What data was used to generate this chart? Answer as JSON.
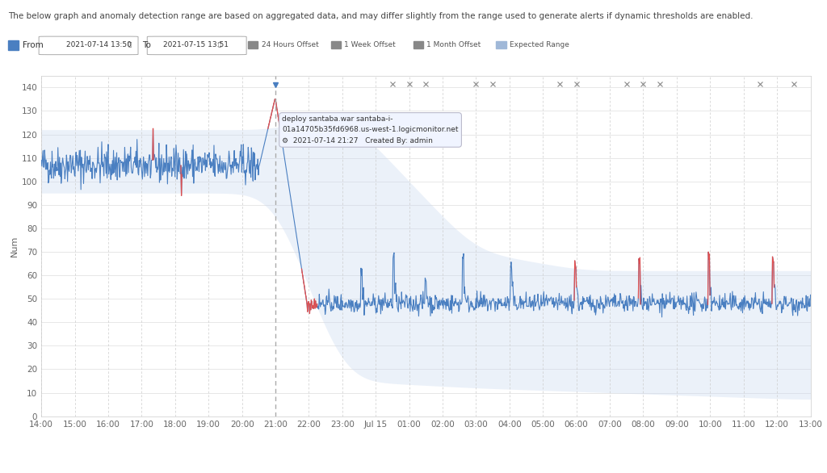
{
  "title_text": "The below graph and anomaly detection range are based on aggregated data, and may differ slightly from the range used to generate alerts if dynamic thresholds are enabled.",
  "from_label": "From",
  "from_date": "2021-07-14 13:50",
  "to_date": "2021-07-15 13:51",
  "legend_items": [
    "24 Hours Offset",
    "1 Week Offset",
    "1 Month Offset",
    "Expected Range"
  ],
  "ylabel": "Num",
  "ylim": [
    0,
    145
  ],
  "yticks": [
    0,
    10,
    20,
    30,
    40,
    50,
    60,
    70,
    80,
    90,
    100,
    110,
    120,
    130,
    140
  ],
  "x_tick_labels": [
    "14:00",
    "15:00",
    "16:00",
    "17:00",
    "18:00",
    "19:00",
    "20:00",
    "21:00",
    "22:00",
    "23:00",
    "Jul 15",
    "01:00",
    "02:00",
    "03:00",
    "04:00",
    "05:00",
    "06:00",
    "07:00",
    "08:00",
    "09:00",
    "10:00",
    "11:00",
    "12:00",
    "13:00"
  ],
  "annotation_text1": "deploy santaba.war santaba-i-",
  "annotation_text2": "01a14705b35fd6968.us-west-1.logicmonitor.net",
  "annotation_text3": "2021-07-14 21:27   Created By: admin",
  "background_color": "#ffffff",
  "band_color": "#c8d8f0",
  "line_color_main": "#4a7fc1",
  "line_color_anomaly": "#e05050",
  "grid_color": "#cccccc",
  "dashed_vert_color": "#888888"
}
